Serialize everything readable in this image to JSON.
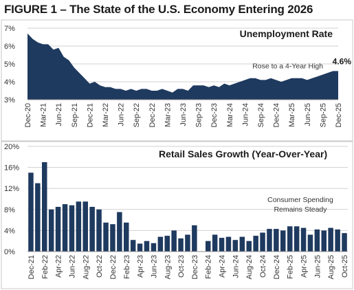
{
  "figure": {
    "title": "FIGURE 1 – The State of the U.S. Economy Entering 2026"
  },
  "colors": {
    "fill": "#1f3a5f",
    "grid": "#d0d0d0",
    "axis": "#888888",
    "panel_border": "#c8c8c8"
  },
  "chart_data": [
    {
      "type": "area",
      "title": "Unemployment Rate",
      "xlabel": "",
      "ylabel": "",
      "ylim": [
        3,
        7
      ],
      "y_ticks": [
        "3%",
        "4%",
        "5%",
        "6%",
        "7%"
      ],
      "grid": true,
      "x_ticks": [
        "Dec-20",
        "Mar-21",
        "Jun-21",
        "Sep-21",
        "Dec-21",
        "Mar-22",
        "Jun-22",
        "Sep-22",
        "Dec-22",
        "Mar-23",
        "Jun-23",
        "Sep-23",
        "Dec-23",
        "Mar-24",
        "Jun-24",
        "Sep-24",
        "Dec-24",
        "Mar-25",
        "Jun-25",
        "Sep-25",
        "Dec-25"
      ],
      "x": [
        "Dec-20",
        "Jan-21",
        "Feb-21",
        "Mar-21",
        "Apr-21",
        "May-21",
        "Jun-21",
        "Jul-21",
        "Aug-21",
        "Sep-21",
        "Oct-21",
        "Nov-21",
        "Dec-21",
        "Jan-22",
        "Feb-22",
        "Mar-22",
        "Apr-22",
        "May-22",
        "Jun-22",
        "Jul-22",
        "Aug-22",
        "Sep-22",
        "Oct-22",
        "Nov-22",
        "Dec-22",
        "Jan-23",
        "Feb-23",
        "Mar-23",
        "Apr-23",
        "May-23",
        "Jun-23",
        "Jul-23",
        "Aug-23",
        "Sep-23",
        "Oct-23",
        "Nov-23",
        "Dec-23",
        "Jan-24",
        "Feb-24",
        "Mar-24",
        "Apr-24",
        "May-24",
        "Jun-24",
        "Jul-24",
        "Aug-24",
        "Sep-24",
        "Oct-24",
        "Nov-24",
        "Dec-24",
        "Jan-25",
        "Feb-25",
        "Mar-25",
        "Apr-25",
        "May-25",
        "Jun-25",
        "Jul-25",
        "Aug-25",
        "Sep-25",
        "Oct-25",
        "Nov-25",
        "Dec-25"
      ],
      "values": [
        6.7,
        6.4,
        6.2,
        6.1,
        6.1,
        5.8,
        5.9,
        5.4,
        5.2,
        4.8,
        4.5,
        4.2,
        3.9,
        4.0,
        3.8,
        3.7,
        3.7,
        3.6,
        3.6,
        3.5,
        3.6,
        3.5,
        3.6,
        3.6,
        3.5,
        3.5,
        3.6,
        3.5,
        3.4,
        3.6,
        3.6,
        3.5,
        3.8,
        3.8,
        3.8,
        3.7,
        3.8,
        3.7,
        3.9,
        3.8,
        3.9,
        4.0,
        4.1,
        4.2,
        4.2,
        4.1,
        4.1,
        4.2,
        4.1,
        4.0,
        4.1,
        4.2,
        4.2,
        4.2,
        4.1,
        4.2,
        4.3,
        4.4,
        4.5,
        4.6,
        4.6
      ],
      "annotations": [
        {
          "text": "Rose to a 4-Year High",
          "x": "Feb-25",
          "y": 4.9
        }
      ],
      "callout": {
        "text": "4.6%",
        "x": "Dec-25",
        "y": 4.6
      }
    },
    {
      "type": "bar",
      "title": "Retail Sales Growth (Year-Over-Year)",
      "xlabel": "",
      "ylabel": "",
      "ylim": [
        0,
        20
      ],
      "y_ticks": [
        "0%",
        "4%",
        "8%",
        "12%",
        "16%",
        "20%"
      ],
      "grid": true,
      "x_ticks": [
        "Dec-21",
        "Feb-22",
        "Apr-22",
        "Jun-22",
        "Aug-22",
        "Oct-22",
        "Dec-22",
        "Feb-23",
        "Apr-23",
        "Jun-23",
        "Aug-23",
        "Oct-23",
        "Dec-23",
        "Feb-24",
        "Apr-24",
        "Jun-24",
        "Aug-24",
        "Oct-24",
        "Dec-24",
        "Feb-25",
        "Apr-25",
        "Jun-25",
        "Aug-25",
        "Oct-25"
      ],
      "categories": [
        "Dec-21",
        "Jan-22",
        "Feb-22",
        "Mar-22",
        "Apr-22",
        "May-22",
        "Jun-22",
        "Jul-22",
        "Aug-22",
        "Sep-22",
        "Oct-22",
        "Nov-22",
        "Dec-22",
        "Jan-23",
        "Feb-23",
        "Mar-23",
        "Apr-23",
        "May-23",
        "Jun-23",
        "Jul-23",
        "Aug-23",
        "Sep-23",
        "Oct-23",
        "Nov-23",
        "Dec-23",
        "Jan-24",
        "Feb-24",
        "Mar-24",
        "Apr-24",
        "May-24",
        "Jun-24",
        "Jul-24",
        "Aug-24",
        "Sep-24",
        "Oct-24",
        "Nov-24",
        "Dec-24",
        "Jan-25",
        "Feb-25",
        "Mar-25",
        "Apr-25",
        "May-25",
        "Jun-25",
        "Jul-25",
        "Aug-25",
        "Sep-25",
        "Oct-25"
      ],
      "values": [
        15.0,
        13.0,
        17.0,
        8.0,
        8.5,
        9.0,
        8.8,
        9.5,
        9.5,
        8.5,
        8.0,
        5.5,
        5.2,
        7.5,
        5.5,
        2.2,
        1.5,
        2.0,
        1.6,
        2.8,
        3.0,
        4.0,
        2.5,
        3.2,
        5.0,
        null,
        2.0,
        3.2,
        2.6,
        2.8,
        2.2,
        2.8,
        2.0,
        3.0,
        3.6,
        4.3,
        4.3,
        4.0,
        4.8,
        4.8,
        4.5,
        3.2,
        4.2,
        4.0,
        4.5,
        4.2,
        3.5
      ],
      "annotations": [
        {
          "lines": [
            "Consumer Spending",
            "Remains Steady"
          ]
        }
      ]
    }
  ]
}
